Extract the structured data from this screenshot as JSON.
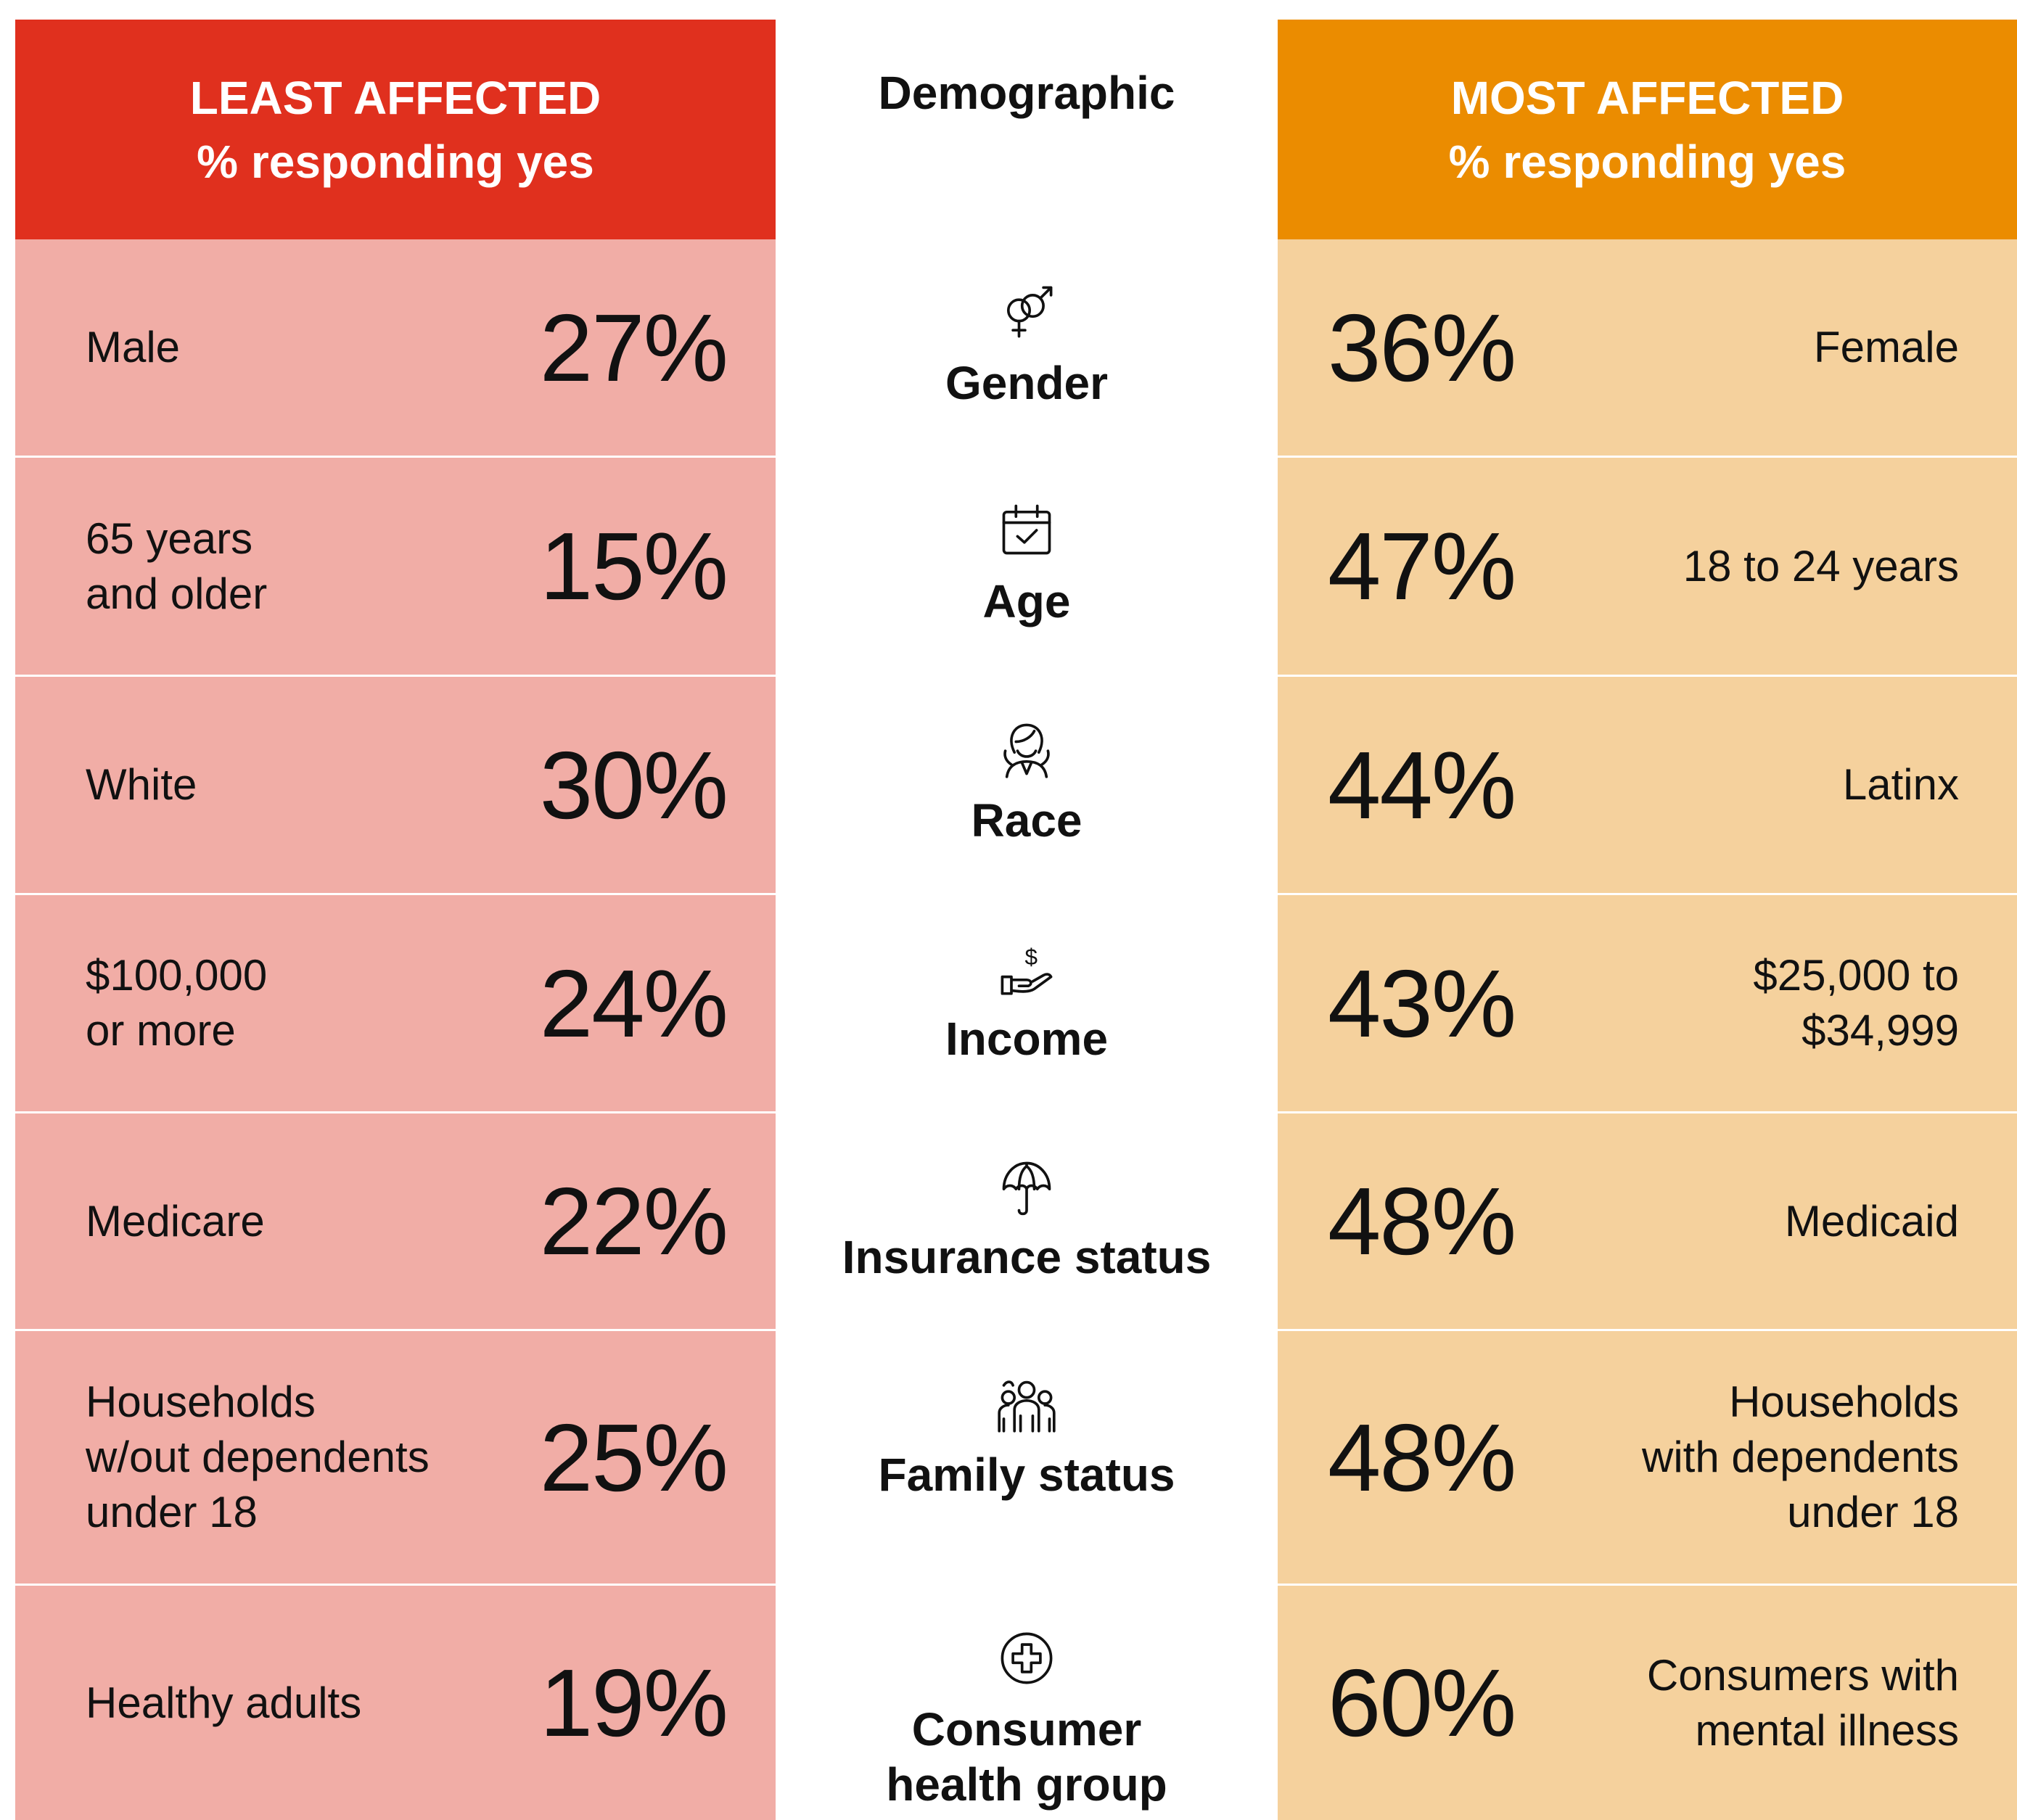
{
  "header": {
    "least": {
      "title": "LEAST AFFECTED",
      "subtitle": "% responding yes"
    },
    "demographic": "Demographic",
    "most": {
      "title": "MOST AFFECTED",
      "subtitle": "% responding yes"
    }
  },
  "rows": [
    {
      "demographic": "Gender",
      "least_group": "Male",
      "least_value": "27%",
      "most_value": "36%",
      "most_group": "Female"
    },
    {
      "demographic": "Age",
      "least_group": "65 years\nand older",
      "least_value": "15%",
      "most_value": "47%",
      "most_group": "18 to 24 years"
    },
    {
      "demographic": "Race",
      "least_group": "White",
      "least_value": "30%",
      "most_value": "44%",
      "most_group": "Latinx"
    },
    {
      "demographic": "Income",
      "least_group": "$100,000\nor more",
      "least_value": "24%",
      "most_value": "43%",
      "most_group": "$25,000 to\n$34,999"
    },
    {
      "demographic": "Insurance status",
      "least_group": "Medicare",
      "least_value": "22%",
      "most_value": "48%",
      "most_group": "Medicaid"
    },
    {
      "demographic": "Family status",
      "least_group": "Households\nw/out dependents\nunder 18",
      "least_value": "25%",
      "most_value": "48%",
      "most_group": "Households\nwith dependents\nunder 18"
    },
    {
      "demographic": "Consumer\nhealth group",
      "least_group": "Healthy adults",
      "least_value": "19%",
      "most_value": "60%",
      "most_group": "Consumers with\nmental illness"
    }
  ]
}
